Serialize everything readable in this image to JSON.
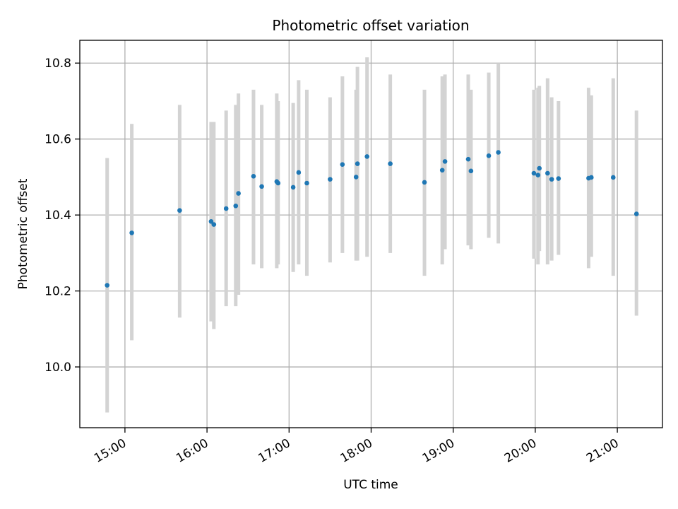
{
  "chart_data": {
    "type": "scatter",
    "title": "Photometric offset variation",
    "xlabel": "UTC time",
    "ylabel": "Photometric offset",
    "x_tick_labels": [
      "15:00",
      "16:00",
      "17:00",
      "18:00",
      "19:00",
      "20:00",
      "21:00"
    ],
    "y_tick_labels": [
      "10.0",
      "10.2",
      "10.4",
      "10.6",
      "10.8"
    ],
    "y_ticks": [
      10.0,
      10.2,
      10.4,
      10.6,
      10.8
    ],
    "xlim": [
      "14:27",
      "21:33"
    ],
    "ylim": [
      9.84,
      10.86
    ],
    "grid": true,
    "colors": {
      "points": "#1f77b4",
      "errorbars": "#d3d3d3",
      "grid": "#b0b0b0"
    },
    "series": [
      {
        "points": [
          {
            "x": "14:47",
            "y": 10.215,
            "low": 9.88,
            "high": 10.55
          },
          {
            "x": "15:05",
            "y": 10.353,
            "low": 10.07,
            "high": 10.64
          },
          {
            "x": "15:40",
            "y": 10.412,
            "low": 10.13,
            "high": 10.69
          },
          {
            "x": "16:03",
            "y": 10.383,
            "low": 10.12,
            "high": 10.645
          },
          {
            "x": "16:05",
            "y": 10.375,
            "low": 10.1,
            "high": 10.645
          },
          {
            "x": "16:14",
            "y": 10.417,
            "low": 10.16,
            "high": 10.675
          },
          {
            "x": "16:21",
            "y": 10.424,
            "low": 10.16,
            "high": 10.69
          },
          {
            "x": "16:23",
            "y": 10.457,
            "low": 10.19,
            "high": 10.72
          },
          {
            "x": "16:34",
            "y": 10.502,
            "low": 10.27,
            "high": 10.73
          },
          {
            "x": "16:40",
            "y": 10.475,
            "low": 10.26,
            "high": 10.69
          },
          {
            "x": "16:51",
            "y": 10.488,
            "low": 10.26,
            "high": 10.72
          },
          {
            "x": "16:52",
            "y": 10.484,
            "low": 10.27,
            "high": 10.7
          },
          {
            "x": "17:03",
            "y": 10.473,
            "low": 10.25,
            "high": 10.695
          },
          {
            "x": "17:07",
            "y": 10.512,
            "low": 10.27,
            "high": 10.755
          },
          {
            "x": "17:13",
            "y": 10.484,
            "low": 10.24,
            "high": 10.73
          },
          {
            "x": "17:30",
            "y": 10.494,
            "low": 10.275,
            "high": 10.71
          },
          {
            "x": "17:39",
            "y": 10.533,
            "low": 10.3,
            "high": 10.765
          },
          {
            "x": "17:49",
            "y": 10.5,
            "low": 10.28,
            "high": 10.73
          },
          {
            "x": "17:50",
            "y": 10.535,
            "low": 10.28,
            "high": 10.79
          },
          {
            "x": "17:57",
            "y": 10.554,
            "low": 10.29,
            "high": 10.815
          },
          {
            "x": "18:14",
            "y": 10.535,
            "low": 10.3,
            "high": 10.77
          },
          {
            "x": "18:39",
            "y": 10.486,
            "low": 10.24,
            "high": 10.73
          },
          {
            "x": "18:52",
            "y": 10.518,
            "low": 10.27,
            "high": 10.765
          },
          {
            "x": "18:54",
            "y": 10.541,
            "low": 10.31,
            "high": 10.77
          },
          {
            "x": "19:11",
            "y": 10.547,
            "low": 10.32,
            "high": 10.77
          },
          {
            "x": "19:13",
            "y": 10.516,
            "low": 10.31,
            "high": 10.73
          },
          {
            "x": "19:26",
            "y": 10.556,
            "low": 10.34,
            "high": 10.775
          },
          {
            "x": "19:33",
            "y": 10.565,
            "low": 10.325,
            "high": 10.8
          },
          {
            "x": "19:59",
            "y": 10.51,
            "low": 10.285,
            "high": 10.73
          },
          {
            "x": "20:02",
            "y": 10.505,
            "low": 10.27,
            "high": 10.735
          },
          {
            "x": "20:03",
            "y": 10.523,
            "low": 10.305,
            "high": 10.74
          },
          {
            "x": "20:09",
            "y": 10.51,
            "low": 10.27,
            "high": 10.76
          },
          {
            "x": "20:12",
            "y": 10.494,
            "low": 10.28,
            "high": 10.71
          },
          {
            "x": "20:17",
            "y": 10.496,
            "low": 10.295,
            "high": 10.7
          },
          {
            "x": "20:39",
            "y": 10.497,
            "low": 10.26,
            "high": 10.735
          },
          {
            "x": "20:41",
            "y": 10.499,
            "low": 10.29,
            "high": 10.715
          },
          {
            "x": "20:57",
            "y": 10.499,
            "low": 10.24,
            "high": 10.76
          },
          {
            "x": "21:14",
            "y": 10.403,
            "low": 10.135,
            "high": 10.675
          }
        ]
      }
    ]
  }
}
